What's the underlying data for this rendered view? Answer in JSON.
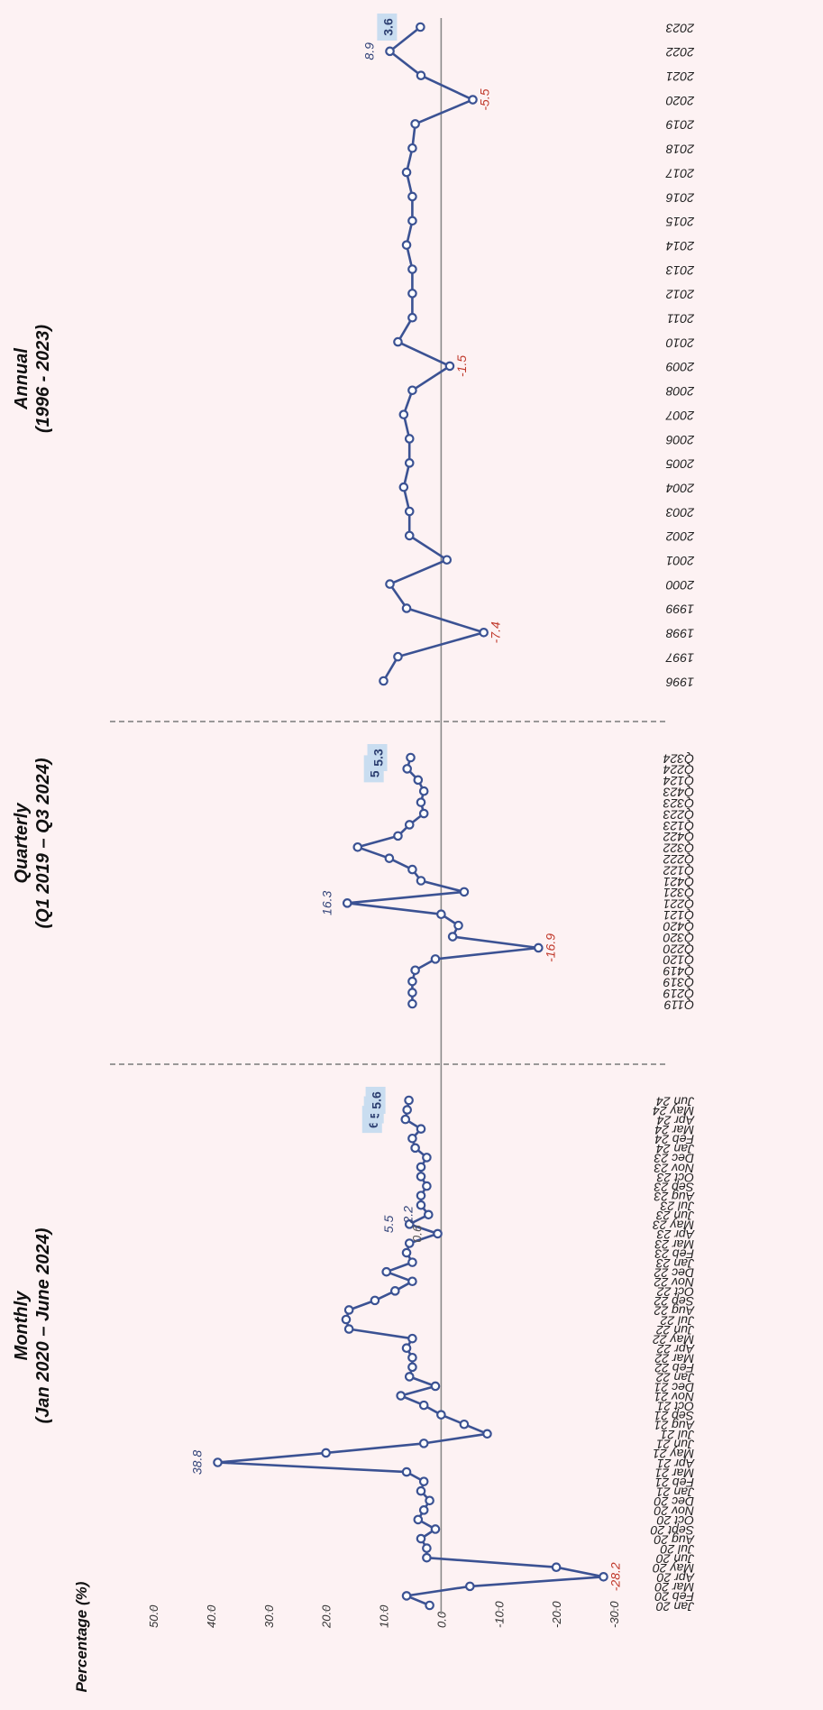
{
  "chart_data": {
    "type": "line",
    "title": "",
    "ylabel": "Percentage (%)",
    "ylim": [
      -30,
      50
    ],
    "yticks": [
      "50.0",
      "40.0",
      "30.0",
      "20.0",
      "10.0",
      "0.0",
      "-10.0",
      "-20.0",
      "-30.0"
    ],
    "grid": false,
    "orientation": "rotated 90 degrees clockwise",
    "colors": {
      "line": "#3b5293",
      "marker_fill": "#ffffff",
      "zero_line": "#8a8a8a",
      "separator": "#7a7a7a",
      "label_positive": "#34457a",
      "label_negative": "#c0392b",
      "highlight_box": "#c9ddf0",
      "background": "#fdf2f3"
    },
    "panels": [
      {
        "title_line1": "Monthly",
        "title_line2": "(Jan 2020 – June 2024)",
        "categories": [
          "Jan 20",
          "Feb 20",
          "Mar 20",
          "Apr 20",
          "May 20",
          "Jun 20",
          "Jul 20",
          "Aug 20",
          "Sept 20",
          "Oct 20",
          "Nov 20",
          "Dec 20",
          "Jan 21",
          "Feb 21",
          "Mar 21",
          "Apr 21",
          "May 21",
          "Jun 21",
          "Jul 21",
          "Aug 21",
          "Sep 21",
          "Oct 21",
          "Nov 21",
          "Dec 21",
          "Jan 22",
          "Feb 22",
          "Mar 22",
          "Apr 22",
          "May 22",
          "Jun 22",
          "Jul 22",
          "Aug 22",
          "Sep 22",
          "Oct 22",
          "Nov 22",
          "Dec 22",
          "Jan 23",
          "Feb 23",
          "Mar 23",
          "Apr 23",
          "May 23",
          "Jun 23",
          "Jul 23",
          "Aug 23",
          "Sep 23",
          "Oct 23",
          "Nov 23",
          "Dec 23",
          "Jan 24",
          "Feb 24",
          "Mar 24",
          "Apr 24",
          "May 24",
          "Jun 24"
        ],
        "values": [
          2.0,
          6.0,
          -5.0,
          -28.2,
          -20.0,
          2.5,
          2.5,
          3.5,
          1.0,
          4.0,
          3.0,
          2.0,
          3.5,
          3.0,
          6.0,
          38.8,
          20.0,
          3.0,
          -8.0,
          -4.0,
          0.0,
          3.0,
          7.0,
          1.0,
          5.5,
          5.0,
          5.0,
          6.0,
          5.0,
          16.0,
          16.5,
          16.0,
          11.5,
          8.0,
          5.0,
          9.5,
          5.0,
          6.0,
          5.5,
          0.6,
          5.5,
          2.2,
          3.5,
          3.5,
          2.5,
          3.5,
          3.5,
          2.5,
          4.5,
          5.0,
          3.5,
          6.2,
          5.9,
          5.6
        ],
        "data_labels": [
          {
            "index": 3,
            "text": "-28.2",
            "style": "neg"
          },
          {
            "index": 15,
            "text": "38.8",
            "style": "pos"
          },
          {
            "index": 39,
            "text": "0.6",
            "style": "zero"
          },
          {
            "index": 40,
            "text": "5.5",
            "style": "pos"
          },
          {
            "index": 41,
            "text": "2.2",
            "style": "pos"
          },
          {
            "index": 51,
            "text": "6.2",
            "style": "box"
          },
          {
            "index": 52,
            "text": "5.9",
            "style": "box"
          },
          {
            "index": 53,
            "text": "5.6",
            "style": "box"
          }
        ]
      },
      {
        "title_line1": "Quarterly",
        "title_line2": "(Q1 2019 – Q3 2024)",
        "categories": [
          "Q119",
          "Q219",
          "Q319",
          "Q419",
          "Q120",
          "Q220",
          "Q320",
          "Q420",
          "Q121",
          "Q221",
          "Q321",
          "Q421",
          "Q122",
          "Q222",
          "Q322",
          "Q422",
          "Q123",
          "Q223",
          "Q323",
          "Q423",
          "Q124",
          "Q224",
          "Q324"
        ],
        "values": [
          5.0,
          5.0,
          5.0,
          4.5,
          1.0,
          -16.9,
          -2.0,
          -3.0,
          0.0,
          16.3,
          -4.0,
          3.5,
          5.0,
          9.0,
          14.5,
          7.5,
          5.5,
          3.0,
          3.5,
          3.0,
          4.0,
          5.9,
          5.3
        ],
        "data_labels": [
          {
            "index": 5,
            "text": "-16.9",
            "style": "neg"
          },
          {
            "index": 9,
            "text": "16.3",
            "style": "pos"
          },
          {
            "index": 21,
            "text": "5.9",
            "style": "box"
          },
          {
            "index": 22,
            "text": "5.3",
            "style": "box"
          }
        ]
      },
      {
        "title_line1": "Annual",
        "title_line2": "(1996 - 2023)",
        "categories": [
          "1996",
          "1997",
          "1998",
          "1999",
          "2000",
          "2001",
          "2002",
          "2003",
          "2004",
          "2005",
          "2006",
          "2007",
          "2008",
          "2009",
          "2010",
          "2011",
          "2012",
          "2013",
          "2014",
          "2015",
          "2016",
          "2017",
          "2018",
          "2019",
          "2020",
          "2021",
          "2022",
          "2023"
        ],
        "values": [
          10.0,
          7.5,
          -7.4,
          6.0,
          8.9,
          -1.0,
          5.5,
          5.5,
          6.5,
          5.5,
          5.5,
          6.5,
          5.0,
          -1.5,
          7.5,
          5.0,
          5.0,
          5.0,
          6.0,
          5.0,
          5.0,
          6.0,
          5.0,
          4.5,
          -5.5,
          3.5,
          8.9,
          3.6
        ],
        "data_labels": [
          {
            "index": 2,
            "text": "-7.4",
            "style": "neg"
          },
          {
            "index": 13,
            "text": "-1.5",
            "style": "neg"
          },
          {
            "index": 24,
            "text": "-5.5",
            "style": "neg"
          },
          {
            "index": 26,
            "text": "8.9",
            "style": "pos"
          },
          {
            "index": 27,
            "text": "3.6",
            "style": "box"
          }
        ]
      }
    ]
  }
}
